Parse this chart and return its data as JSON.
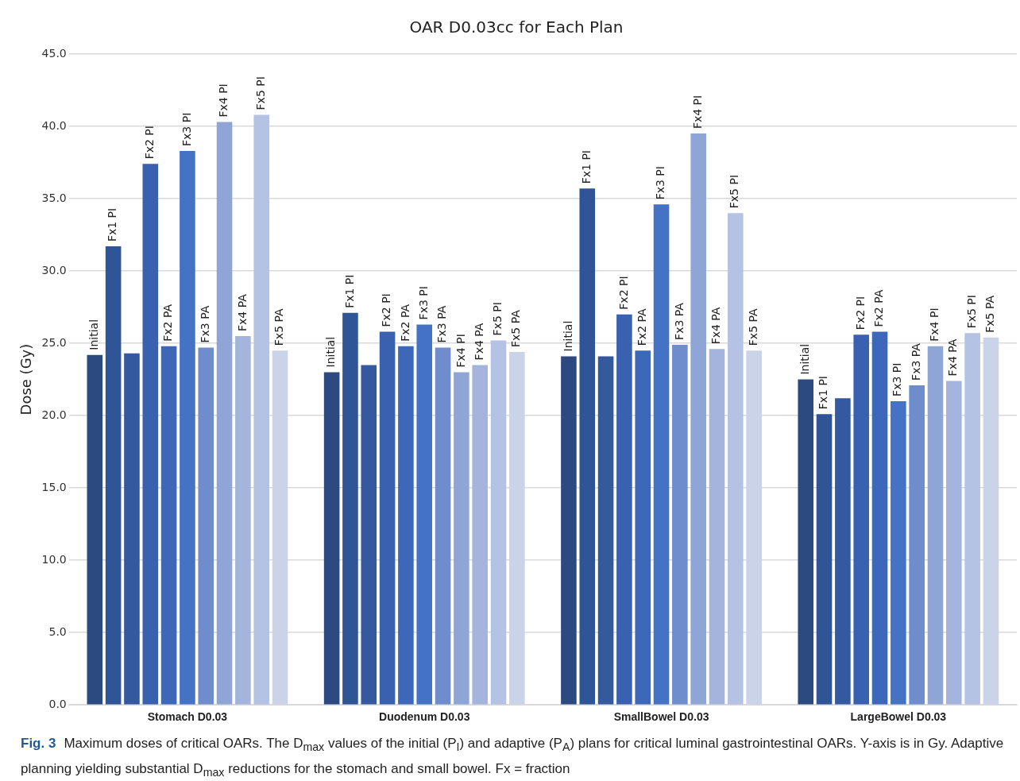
{
  "chart_data": {
    "type": "bar",
    "title": "OAR D0.03cc for Each Plan",
    "ylabel": "Dose (Gy)",
    "categories": [
      "Stomach D0.03",
      "Duodenum D0.03",
      "SmallBowel D0.03",
      "LargeBowel D0.03"
    ],
    "series": [
      {
        "name": "Initial",
        "color": "#2d4a80",
        "values": [
          24.2,
          23.0,
          24.1,
          22.5
        ]
      },
      {
        "name": "Fx1 PI",
        "color": "#2f5597",
        "values": [
          31.7,
          27.1,
          35.7,
          20.1
        ]
      },
      {
        "color": "#35599e",
        "values": [
          24.3,
          23.5,
          24.1,
          21.2
        ]
      },
      {
        "name": "Fx2 PI",
        "color": "#3a61b0",
        "values": [
          37.4,
          25.8,
          27.0,
          25.6
        ]
      },
      {
        "name": "Fx2 PA",
        "color": "#3d68b9",
        "values": [
          24.8,
          24.8,
          24.5,
          25.8
        ]
      },
      {
        "name": "Fx3 PI",
        "color": "#4472c4",
        "values": [
          38.3,
          26.3,
          34.6,
          21.0
        ]
      },
      {
        "name": "Fx3 PA",
        "color": "#6f8ccc",
        "values": [
          24.7,
          24.7,
          24.9,
          22.1
        ]
      },
      {
        "name": "Fx4 PI",
        "color": "#8fa5d6",
        "values": [
          40.3,
          23.0,
          39.5,
          24.8
        ]
      },
      {
        "name": "Fx4 PA",
        "color": "#a5b4dc",
        "values": [
          25.5,
          23.5,
          24.6,
          22.4
        ]
      },
      {
        "name": "Fx5 PI",
        "color": "#b4c2e3",
        "values": [
          40.8,
          25.2,
          34.0,
          25.7
        ]
      },
      {
        "name": "Fx5 PA",
        "color": "#cbd3e9",
        "values": [
          24.5,
          24.4,
          24.5,
          25.4
        ]
      }
    ],
    "ylim": [
      0,
      45
    ],
    "yticks": [
      {
        "value": 0,
        "label": "0.0"
      },
      {
        "value": 5,
        "label": "5.0"
      },
      {
        "value": 10,
        "label": "10.0"
      },
      {
        "value": 15,
        "label": "15.0"
      },
      {
        "value": 20,
        "label": "20.0"
      },
      {
        "value": 25,
        "label": "25.0"
      },
      {
        "value": 30,
        "label": "30.0"
      },
      {
        "value": 35,
        "label": "35.0"
      },
      {
        "value": 40,
        "label": "40.0"
      },
      {
        "value": 45,
        "label": "45.0"
      }
    ],
    "grid": "y",
    "legend": false,
    "annotations": [
      "Fig. 3",
      "Maximum doses of critical OARs. The D$_{max}$ values of the initial (P$_{I}$) and adaptive (P$_{A}$) plans for critical luminal gastrointestinal OARs. Y-axis is in Gy. Adaptive planning yielding substantial D$_{max}$ reductions for the stomach and small bowel. Fx = fraction"
    ]
  }
}
